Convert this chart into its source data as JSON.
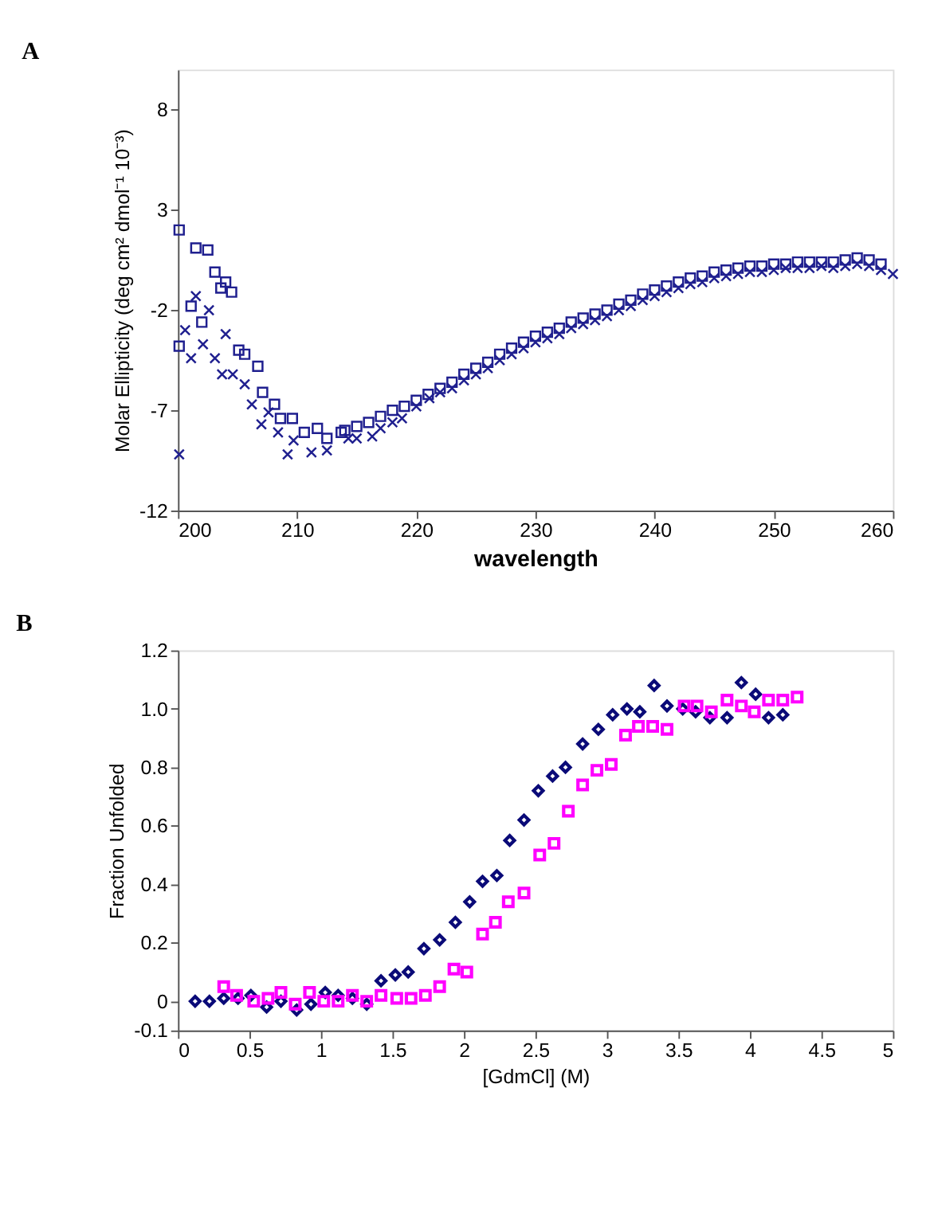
{
  "chart_data": [
    {
      "type": "scatter",
      "title": "A",
      "xlabel": "wavelength",
      "ylabel": "Molar Ellipticity (deg cm² dmol⁻¹ 10⁻³)",
      "xlim": [
        200,
        260
      ],
      "xticks": [
        200,
        210,
        220,
        230,
        240,
        250,
        260
      ],
      "ylim": [
        -12,
        10
      ],
      "yticks": [
        -12,
        -7,
        -2,
        3,
        8
      ],
      "grid": false,
      "series": [
        {
          "color": "#1f1f8f",
          "marker": "square",
          "x": [
            200.1,
            200.1,
            201.1,
            201.5,
            202,
            202.5,
            203.1,
            203.6,
            204,
            204.5,
            205.1,
            205.6,
            206.7,
            207.1,
            208.1,
            208.6,
            209.6,
            210.6,
            211.7,
            212.5,
            213.7,
            214,
            215,
            216,
            217,
            218,
            219,
            220,
            221,
            222,
            223,
            224,
            225,
            226,
            227,
            228,
            229,
            230,
            231,
            232,
            233,
            234,
            235,
            236,
            237,
            238,
            239,
            240,
            241,
            242,
            243,
            244,
            245,
            246,
            247,
            248,
            249,
            250,
            251,
            252,
            253,
            254,
            255,
            256,
            257,
            258,
            259
          ],
          "values": [
            2.0,
            -3.8,
            -1.8,
            1.1,
            -2.6,
            1.0,
            -0.1,
            -0.9,
            -0.6,
            -1.1,
            -4.0,
            -4.2,
            -4.8,
            -6.1,
            -6.7,
            -7.4,
            -7.4,
            -8.1,
            -7.9,
            -8.4,
            -8.1,
            -8.0,
            -7.8,
            -7.6,
            -7.3,
            -7.0,
            -6.8,
            -6.5,
            -6.2,
            -5.9,
            -5.6,
            -5.2,
            -4.9,
            -4.6,
            -4.2,
            -3.9,
            -3.6,
            -3.3,
            -3.1,
            -2.9,
            -2.6,
            -2.4,
            -2.2,
            -2.0,
            -1.7,
            -1.5,
            -1.2,
            -1.0,
            -0.8,
            -0.6,
            -0.4,
            -0.3,
            -0.1,
            0.0,
            0.1,
            0.2,
            0.2,
            0.3,
            0.3,
            0.4,
            0.4,
            0.4,
            0.4,
            0.5,
            0.6,
            0.5,
            0.3
          ]
        },
        {
          "color": "#1f1f8f",
          "marker": "cross",
          "x": [
            200.1,
            200.6,
            201.1,
            201.5,
            202.1,
            202.6,
            203.1,
            203.7,
            204,
            204.6,
            205.6,
            206.2,
            207,
            207.6,
            208.4,
            209.2,
            209.7,
            211.2,
            212.5,
            214.3,
            215,
            216.3,
            217,
            218,
            218.8,
            220,
            221.1,
            222,
            223,
            224,
            225,
            226,
            227,
            228,
            229,
            230,
            231,
            232,
            233,
            234,
            235,
            236,
            237,
            238,
            239,
            240,
            241,
            242,
            243,
            244,
            245,
            246,
            247,
            248,
            249,
            250,
            251,
            252,
            253,
            254,
            255,
            256,
            257,
            258,
            259,
            260
          ],
          "values": [
            -9.2,
            -3.0,
            -4.4,
            -1.3,
            -3.7,
            -2.0,
            -4.4,
            -5.2,
            -3.2,
            -5.2,
            -5.7,
            -6.7,
            -7.7,
            -7.1,
            -8.1,
            -9.2,
            -8.5,
            -9.1,
            -9.0,
            -8.4,
            -8.4,
            -8.3,
            -7.9,
            -7.6,
            -7.4,
            -6.8,
            -6.4,
            -6.1,
            -5.9,
            -5.5,
            -5.2,
            -4.9,
            -4.5,
            -4.2,
            -3.9,
            -3.6,
            -3.4,
            -3.2,
            -2.9,
            -2.7,
            -2.5,
            -2.3,
            -2.0,
            -1.8,
            -1.5,
            -1.3,
            -1.1,
            -0.9,
            -0.7,
            -0.6,
            -0.4,
            -0.3,
            -0.2,
            -0.1,
            -0.1,
            0.0,
            0.1,
            0.1,
            0.1,
            0.2,
            0.1,
            0.2,
            0.3,
            0.2,
            0.0,
            -0.2
          ]
        }
      ]
    },
    {
      "type": "scatter",
      "title": "B",
      "xlabel": "[GdmCl] (M)",
      "ylabel": "Fraction Unfolded",
      "xlim": [
        0,
        5
      ],
      "xticks": [
        0,
        0.5,
        1,
        1.5,
        2,
        2.5,
        3,
        3.5,
        4,
        4.5,
        5
      ],
      "ylim": [
        -0.1,
        1.2
      ],
      "yticks": [
        -0.1,
        0,
        0.2,
        0.4,
        0.6,
        0.8,
        {
          "value": 1.0,
          "label": "1.0"
        },
        1.2
      ],
      "grid": false,
      "series": [
        {
          "color": "#0a0a78",
          "marker": "diamond",
          "x": [
            0.12,
            0.22,
            0.32,
            0.42,
            0.51,
            0.62,
            0.72,
            0.83,
            0.93,
            1.03,
            1.12,
            1.22,
            1.32,
            1.42,
            1.52,
            1.61,
            1.72,
            1.83,
            1.94,
            2.04,
            2.13,
            2.23,
            2.32,
            2.42,
            2.52,
            2.62,
            2.71,
            2.83,
            2.94,
            3.04,
            3.14,
            3.23,
            3.33,
            3.42,
            3.53,
            3.62,
            3.72,
            3.84,
            3.94,
            4.04,
            4.13,
            4.23
          ],
          "values": [
            0.0,
            0.0,
            0.01,
            0.01,
            0.02,
            -0.02,
            0.0,
            -0.03,
            -0.01,
            0.03,
            0.02,
            0.01,
            -0.01,
            0.07,
            0.09,
            0.1,
            0.18,
            0.21,
            0.27,
            0.34,
            0.41,
            0.43,
            0.55,
            0.62,
            0.72,
            0.77,
            0.8,
            0.88,
            0.93,
            0.98,
            1.0,
            0.99,
            1.08,
            1.01,
            1.0,
            0.99,
            0.97,
            0.97,
            1.09,
            1.05,
            0.97,
            0.98
          ]
        },
        {
          "color": "#ff00ff",
          "marker": "square",
          "x": [
            0.32,
            0.41,
            0.53,
            0.63,
            0.72,
            0.82,
            0.92,
            1.02,
            1.12,
            1.22,
            1.32,
            1.42,
            1.53,
            1.63,
            1.73,
            1.83,
            1.93,
            2.02,
            2.13,
            2.22,
            2.31,
            2.42,
            2.53,
            2.63,
            2.73,
            2.83,
            2.93,
            3.03,
            3.13,
            3.22,
            3.32,
            3.42,
            3.54,
            3.63,
            3.73,
            3.84,
            3.94,
            4.03,
            4.13,
            4.23,
            4.33
          ],
          "values": [
            0.05,
            0.02,
            0.0,
            0.01,
            0.03,
            -0.01,
            0.03,
            0.0,
            0.0,
            0.02,
            0.0,
            0.02,
            0.01,
            0.01,
            0.02,
            0.05,
            0.11,
            0.1,
            0.23,
            0.27,
            0.34,
            0.37,
            0.5,
            0.54,
            0.65,
            0.74,
            0.79,
            0.81,
            0.91,
            0.94,
            0.94,
            0.93,
            1.01,
            1.01,
            0.99,
            1.03,
            1.01,
            0.99,
            1.03,
            1.03,
            1.04
          ]
        }
      ]
    }
  ]
}
